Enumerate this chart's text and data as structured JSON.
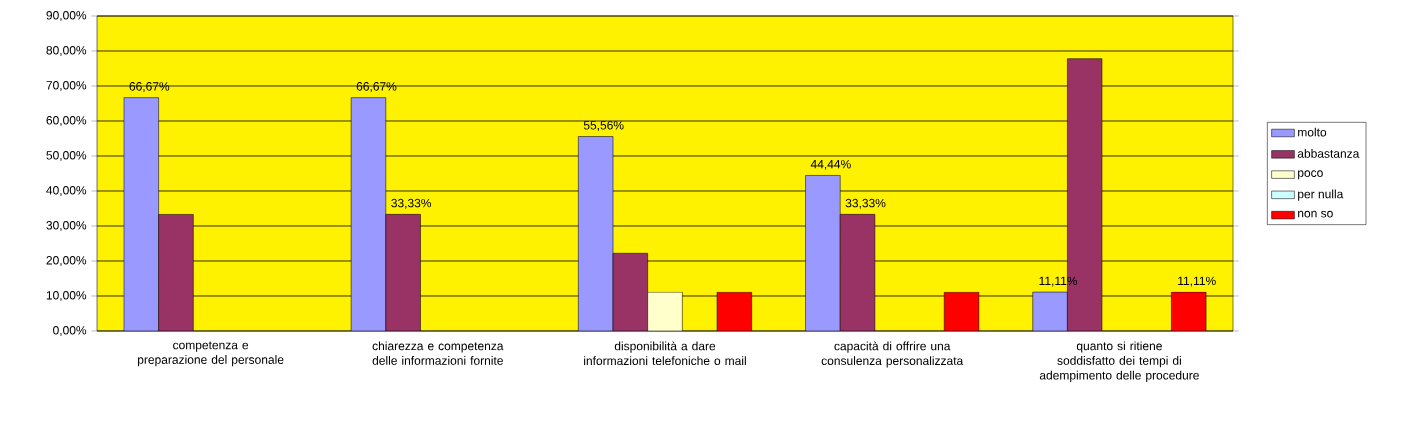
{
  "chart_data": {
    "type": "bar",
    "categories": [
      "competenza e preparazione del personale",
      "chiarezza e competenza delle informazioni fornite",
      "disponibilità a dare informazioni telefoniche o mail",
      "capacità di offrire una consulenza personalizzata",
      "quanto si ritiene soddisfatto dei tempi di adempimento delle procedure"
    ],
    "series": [
      {
        "name": "molto",
        "color": "#9999ff",
        "values": [
          66.67,
          66.67,
          55.56,
          44.44,
          11.11
        ],
        "value_labels": [
          "66,67%",
          "66,67%",
          "55,56%",
          "44,44%",
          "11,11%"
        ]
      },
      {
        "name": "abbastanza",
        "color": "#993366",
        "values": [
          33.3,
          33.33,
          22.2,
          33.33,
          77.8
        ],
        "value_labels": [
          null,
          "33,33%",
          null,
          "33,33%",
          null
        ]
      },
      {
        "name": "poco",
        "color": "#ffffcc",
        "values": [
          null,
          null,
          11.1,
          null,
          null
        ]
      },
      {
        "name": "per nulla",
        "color": "#ccffff",
        "values": [
          null,
          null,
          null,
          null,
          null
        ]
      },
      {
        "name": "non so",
        "color": "#ff0000",
        "values": [
          null,
          null,
          11.1,
          11.1,
          11.11
        ],
        "value_labels": [
          null,
          null,
          null,
          null,
          "11,11%"
        ]
      }
    ],
    "ylim": [
      0,
      90
    ],
    "yticks": [
      {
        "value": 0,
        "label": "0,00%"
      },
      {
        "value": 10,
        "label": "10,00%"
      },
      {
        "value": 20,
        "label": "20,00%"
      },
      {
        "value": 30,
        "label": "30,00%"
      },
      {
        "value": 40,
        "label": "40,00%"
      },
      {
        "value": 50,
        "label": "50,00%"
      },
      {
        "value": 60,
        "label": "60,00%"
      },
      {
        "value": 70,
        "label": "70,00%"
      },
      {
        "value": 80,
        "label": "80,00%"
      },
      {
        "value": 90,
        "label": "90,00%"
      }
    ],
    "grid": "y",
    "legend": "right"
  }
}
